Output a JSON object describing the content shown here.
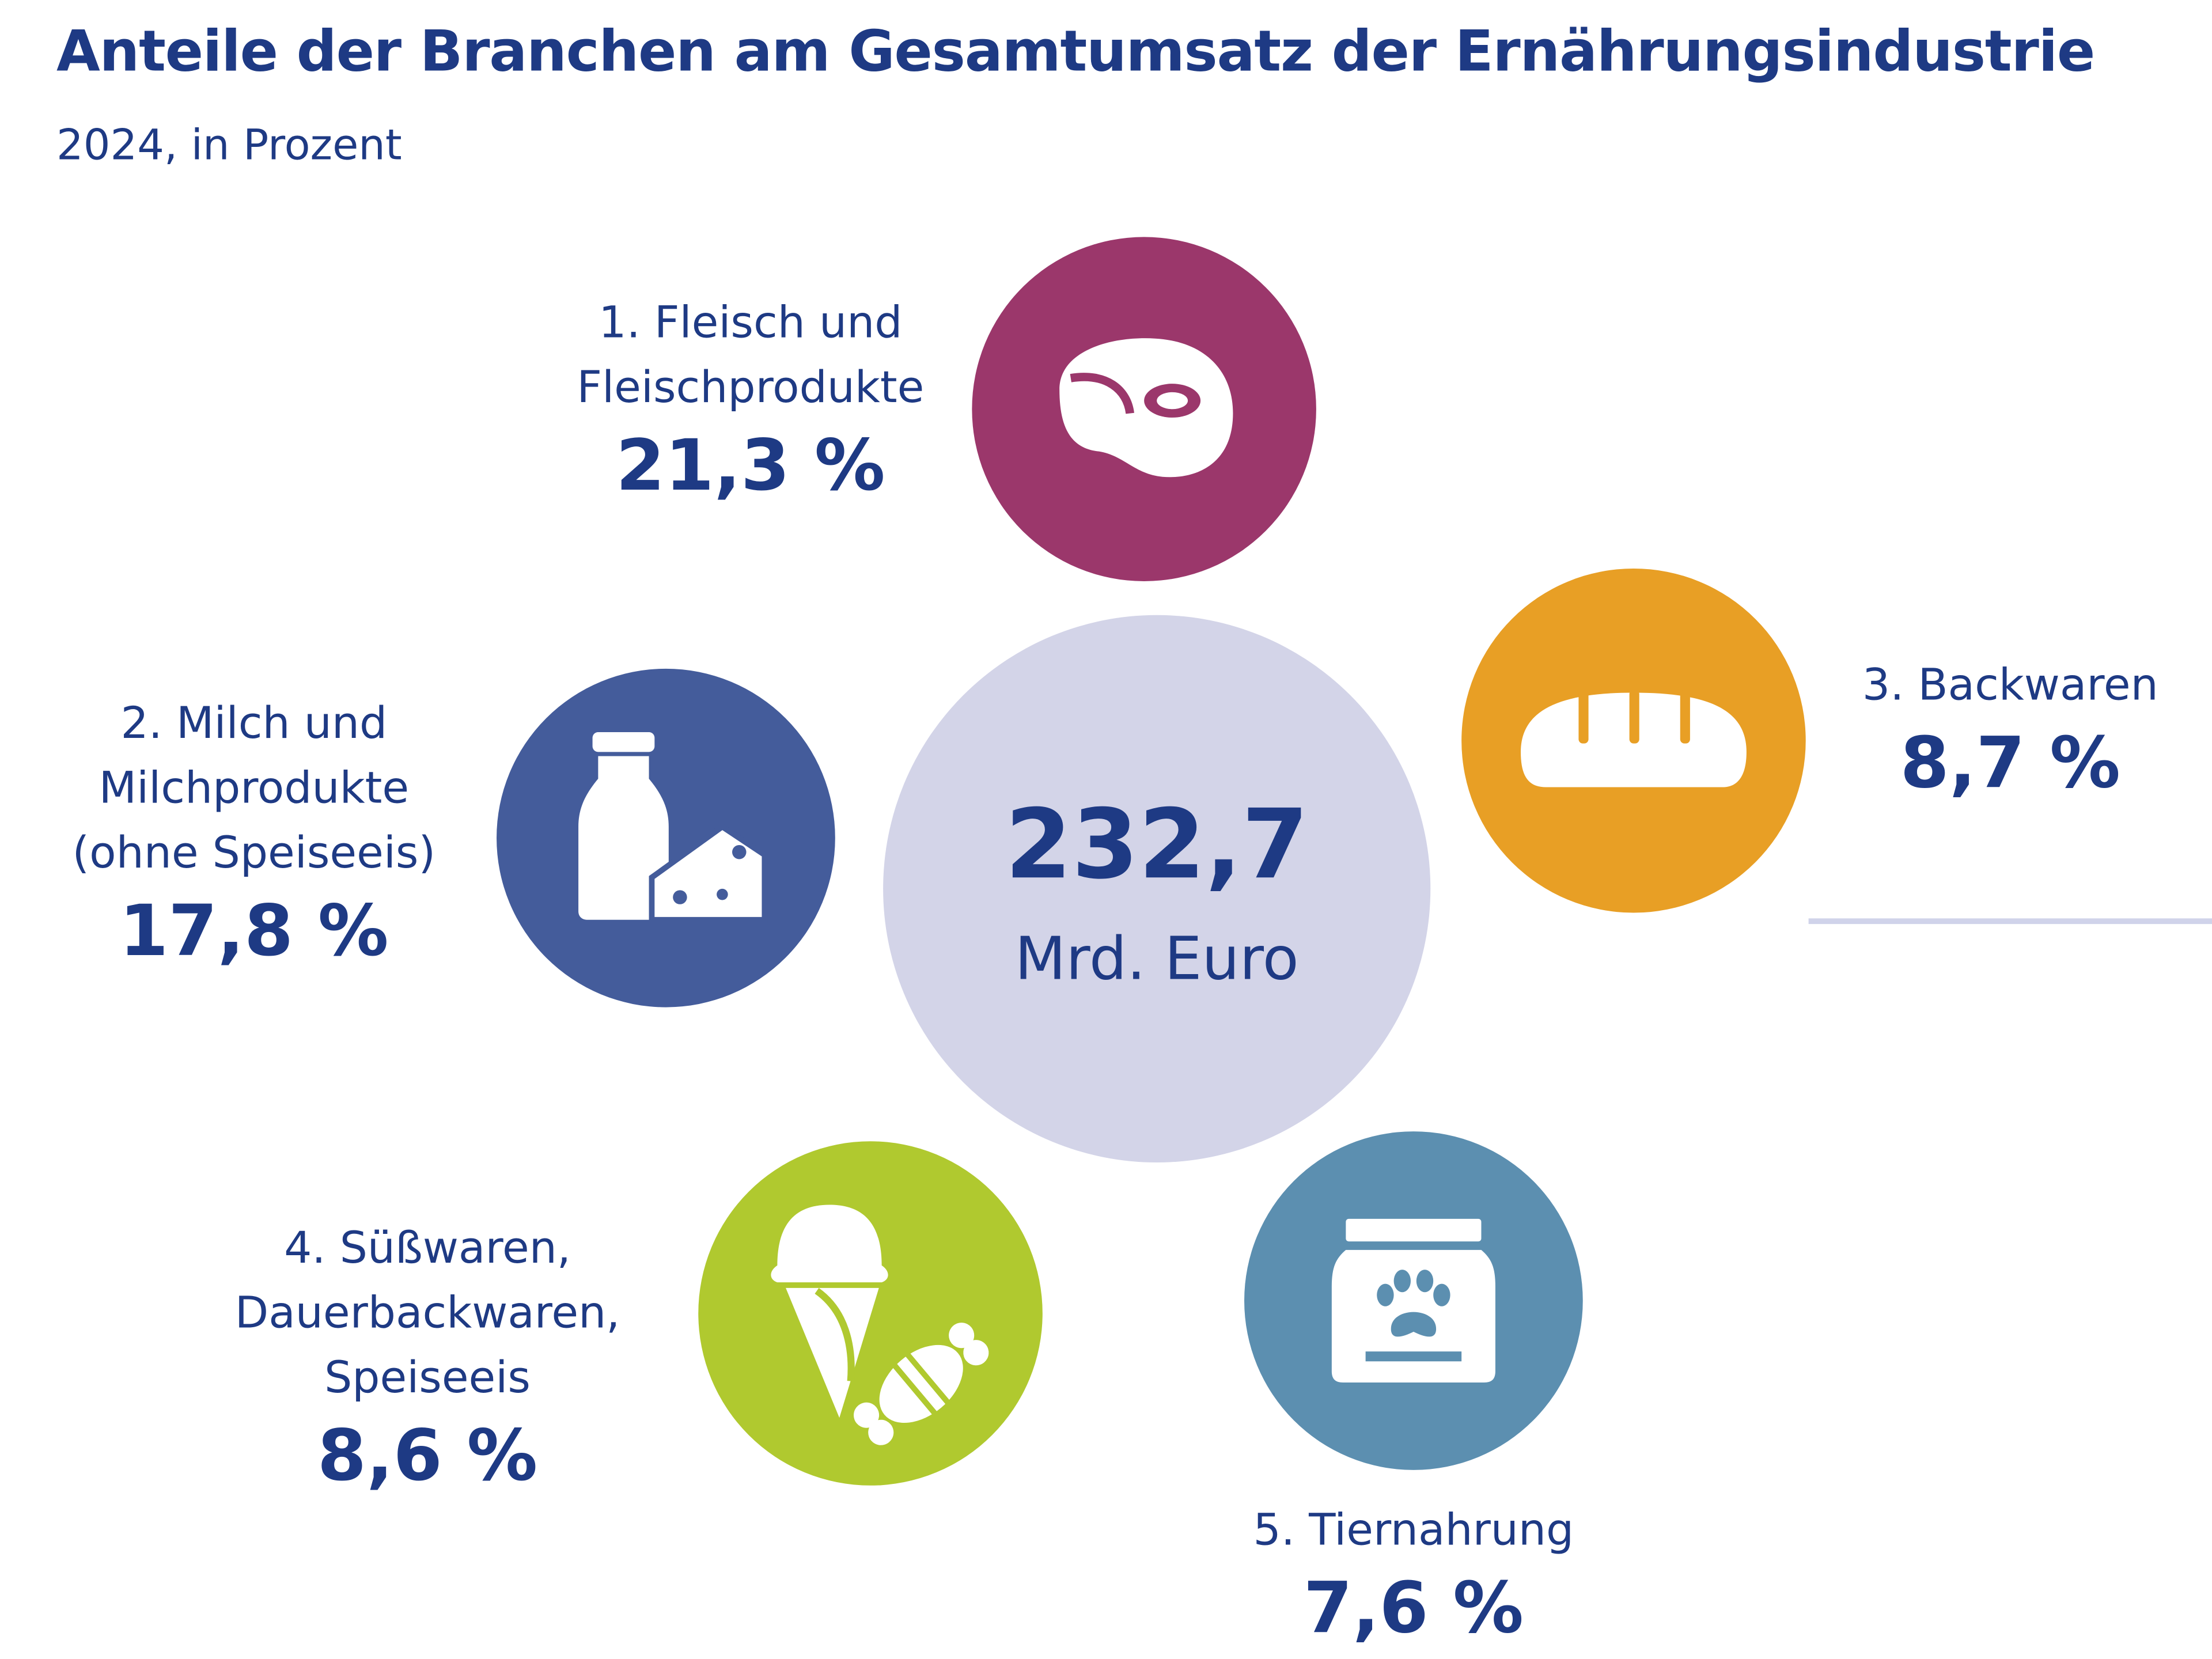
{
  "title": "Anteile der Branchen am Gesamtumsatz der Ernährungsindustrie",
  "subtitle": "2024, in Prozent",
  "center": {
    "total": "232,7",
    "unit": "Mrd. Euro",
    "color": "#d3d4e8"
  },
  "segments": [
    {
      "lines": [
        "1. Fleisch und",
        "Fleischprodukte"
      ],
      "value_label": "21,3 %",
      "color": "#9b376b",
      "icon": "meat-icon"
    },
    {
      "lines": [
        "2. Milch und",
        "Milchprodukte",
        "(ohne Speiseeis)"
      ],
      "value_label": "17,8 %",
      "color": "#445c9b",
      "icon": "milk-cheese-icon"
    },
    {
      "lines": [
        "3. Backwaren"
      ],
      "value_label": "8,7 %",
      "color": "#e89f25",
      "icon": "bread-icon"
    },
    {
      "lines": [
        "4. Süßwaren,",
        "Dauerbackwaren,",
        "Speiseeis"
      ],
      "value_label": "8,6 %",
      "color": "#b0c92f",
      "icon": "icecream-candy-icon"
    },
    {
      "lines": [
        "5. Tiernahrung"
      ],
      "value_label": "7,6 %",
      "color": "#5c8fb0",
      "icon": "pet-food-icon"
    }
  ],
  "chart_data": {
    "type": "bubble-infographic",
    "title": "Anteile der Branchen am Gesamtumsatz der Ernährungsindustrie",
    "subtitle": "2024, in Prozent",
    "total": {
      "value": 232.7,
      "unit": "Mrd. Euro"
    },
    "categories": [
      "Fleisch und Fleischprodukte",
      "Milch und Milchprodukte (ohne Speiseeis)",
      "Backwaren",
      "Süßwaren, Dauerbackwaren, Speiseeis",
      "Tiernahrung"
    ],
    "values": [
      21.3,
      17.8,
      8.7,
      8.6,
      7.6
    ]
  }
}
